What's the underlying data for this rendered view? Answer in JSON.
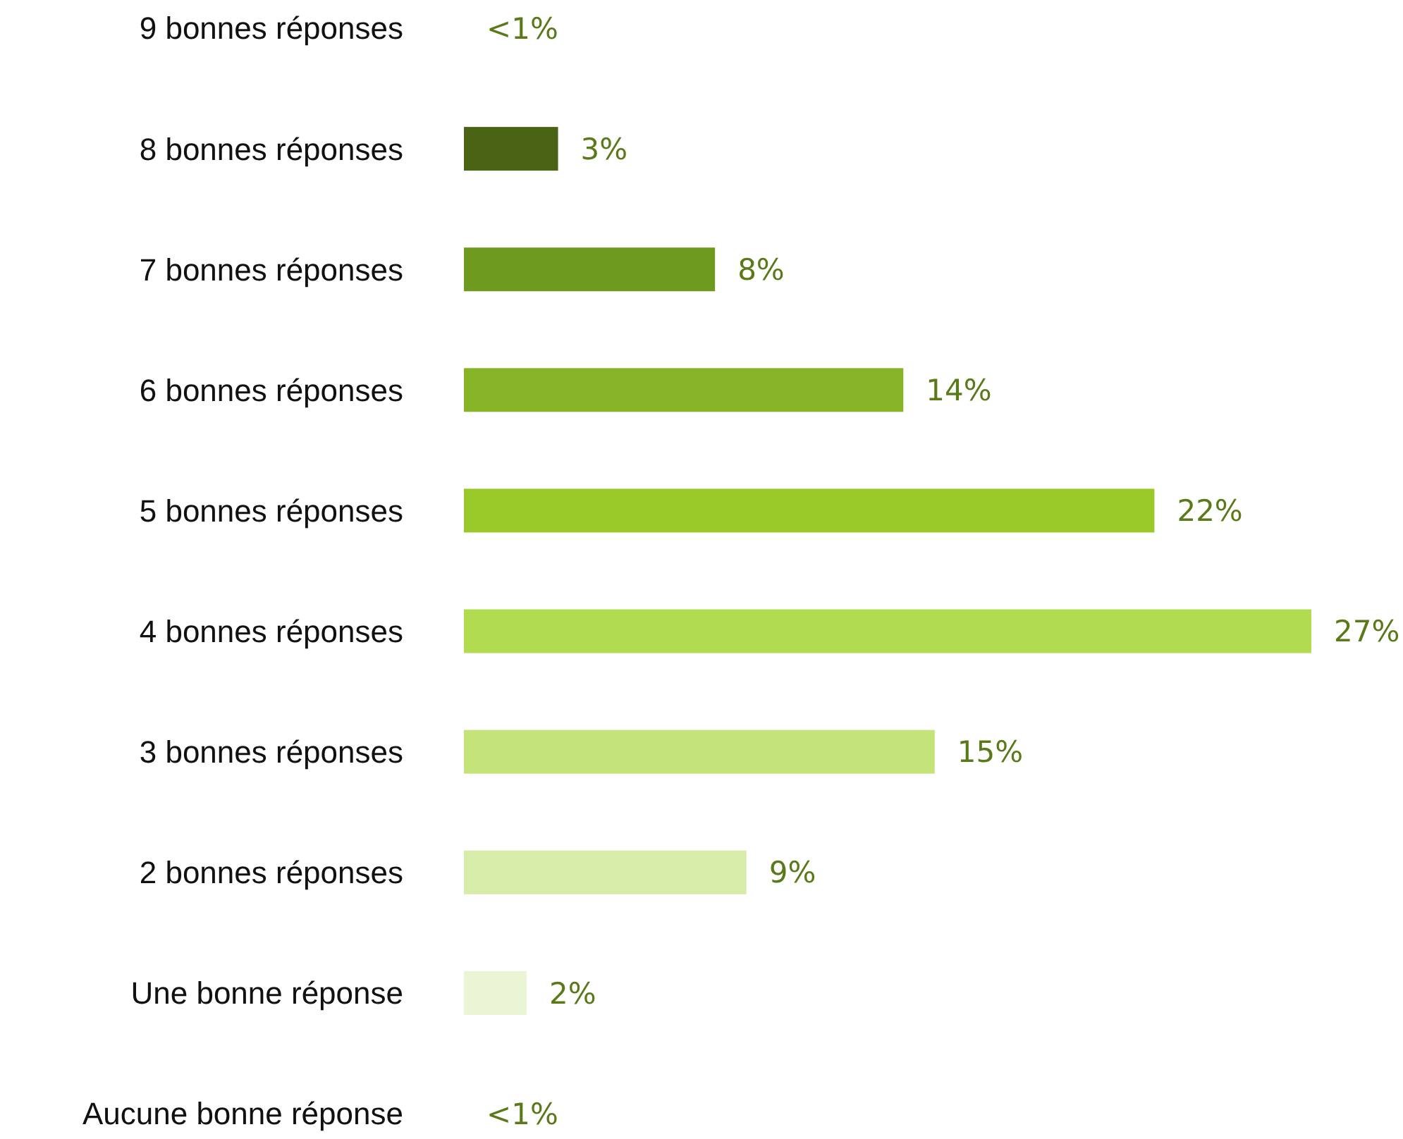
{
  "chart_data": {
    "type": "bar",
    "orientation": "horizontal",
    "categories": [
      "9 bonnes réponses",
      "8 bonnes réponses",
      "7 bonnes réponses",
      "6 bonnes réponses",
      "5 bonnes réponses",
      "4 bonnes réponses",
      "3 bonnes réponses",
      "2 bonnes réponses",
      "Une bonne réponse",
      "Aucune bonne réponse"
    ],
    "values": [
      0,
      3,
      8,
      14,
      22,
      27,
      15,
      9,
      2,
      0
    ],
    "colors": [
      "#3f5a10",
      "#4a6314",
      "#6e9a20",
      "#86b426",
      "#99c929",
      "#b1dc4f",
      "#c4e47a",
      "#d8ecaa",
      "#eaf5d6",
      "#f3f9e8"
    ],
    "value_labels": [
      "<1%",
      "3%",
      "8%",
      "14%",
      "22%",
      "27%",
      "15%",
      "9%",
      "2%",
      "<1%"
    ]
  }
}
